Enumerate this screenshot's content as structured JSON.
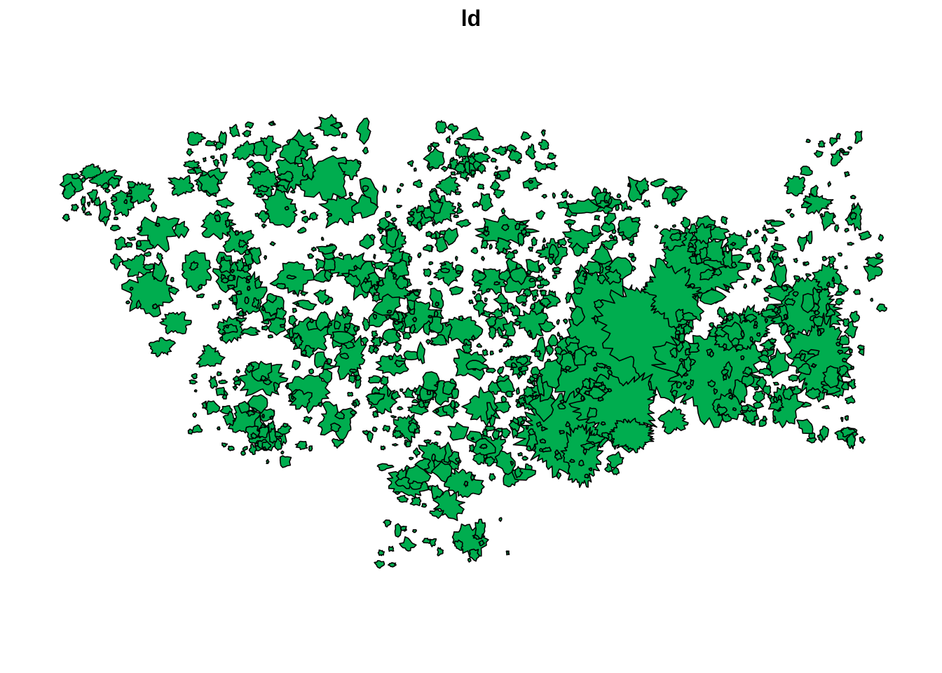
{
  "title": "ld",
  "map": {
    "type": "polygon-layer",
    "fill_color": "#00AD4F",
    "outline_color": "#000000",
    "background_color": "#FFFFFF",
    "legend": null,
    "axes": false,
    "grid": false
  }
}
